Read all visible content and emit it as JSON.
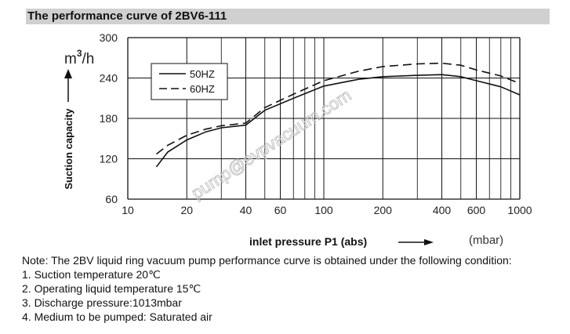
{
  "header": {
    "title": "The performance curve of 2BV6-111"
  },
  "chart_data": {
    "type": "line",
    "title": "The performance curve of 2BV6-111",
    "xlabel": "inlet pressure  P1  (abs)",
    "x_unit": "(mbar)",
    "ylabel": "Suction capacity",
    "y_unit_base": "m",
    "y_unit_exp": "3",
    "y_unit_rest": "/h",
    "x_scale": "log",
    "xlim": [
      10,
      1000
    ],
    "ylim": [
      60,
      300
    ],
    "x_ticks": [
      10,
      20,
      40,
      60,
      100,
      200,
      400,
      600,
      1000
    ],
    "x_tick_labels": [
      "10",
      "20",
      "40",
      "60",
      "100",
      "200",
      "400",
      "600",
      "1000"
    ],
    "y_ticks": [
      60,
      120,
      180,
      240,
      300
    ],
    "y_tick_labels": [
      "60",
      "120",
      "180",
      "240",
      "300"
    ],
    "grid": true,
    "legend_position": "top-left",
    "series": [
      {
        "name": "50HZ",
        "style": "solid",
        "x": [
          14,
          16,
          20,
          25,
          30,
          40,
          50,
          70,
          100,
          150,
          200,
          300,
          400,
          500,
          600,
          800,
          1000
        ],
        "y": [
          108,
          130,
          148,
          160,
          166,
          170,
          192,
          210,
          228,
          238,
          242,
          244,
          245,
          242,
          236,
          227,
          215
        ]
      },
      {
        "name": "60HZ",
        "style": "dashed",
        "x": [
          14,
          16,
          20,
          25,
          30,
          40,
          50,
          70,
          100,
          150,
          200,
          300,
          400,
          500,
          600,
          800,
          1000
        ],
        "y": [
          127,
          140,
          155,
          164,
          169,
          173,
          196,
          216,
          236,
          250,
          257,
          261,
          262,
          259,
          252,
          243,
          232
        ]
      }
    ]
  },
  "watermark": "pump@evpvacuum.com",
  "notes": {
    "intro": "Note: The 2BV liquid ring vacuum pump performance curve is obtained under the following condition:",
    "items": [
      "1. Suction temperature 20℃",
      "2. Operating liquid temperature 15℃",
      "3. Discharge pressure:1013mbar",
      "4. Medium to be pumped: Saturated air"
    ]
  }
}
